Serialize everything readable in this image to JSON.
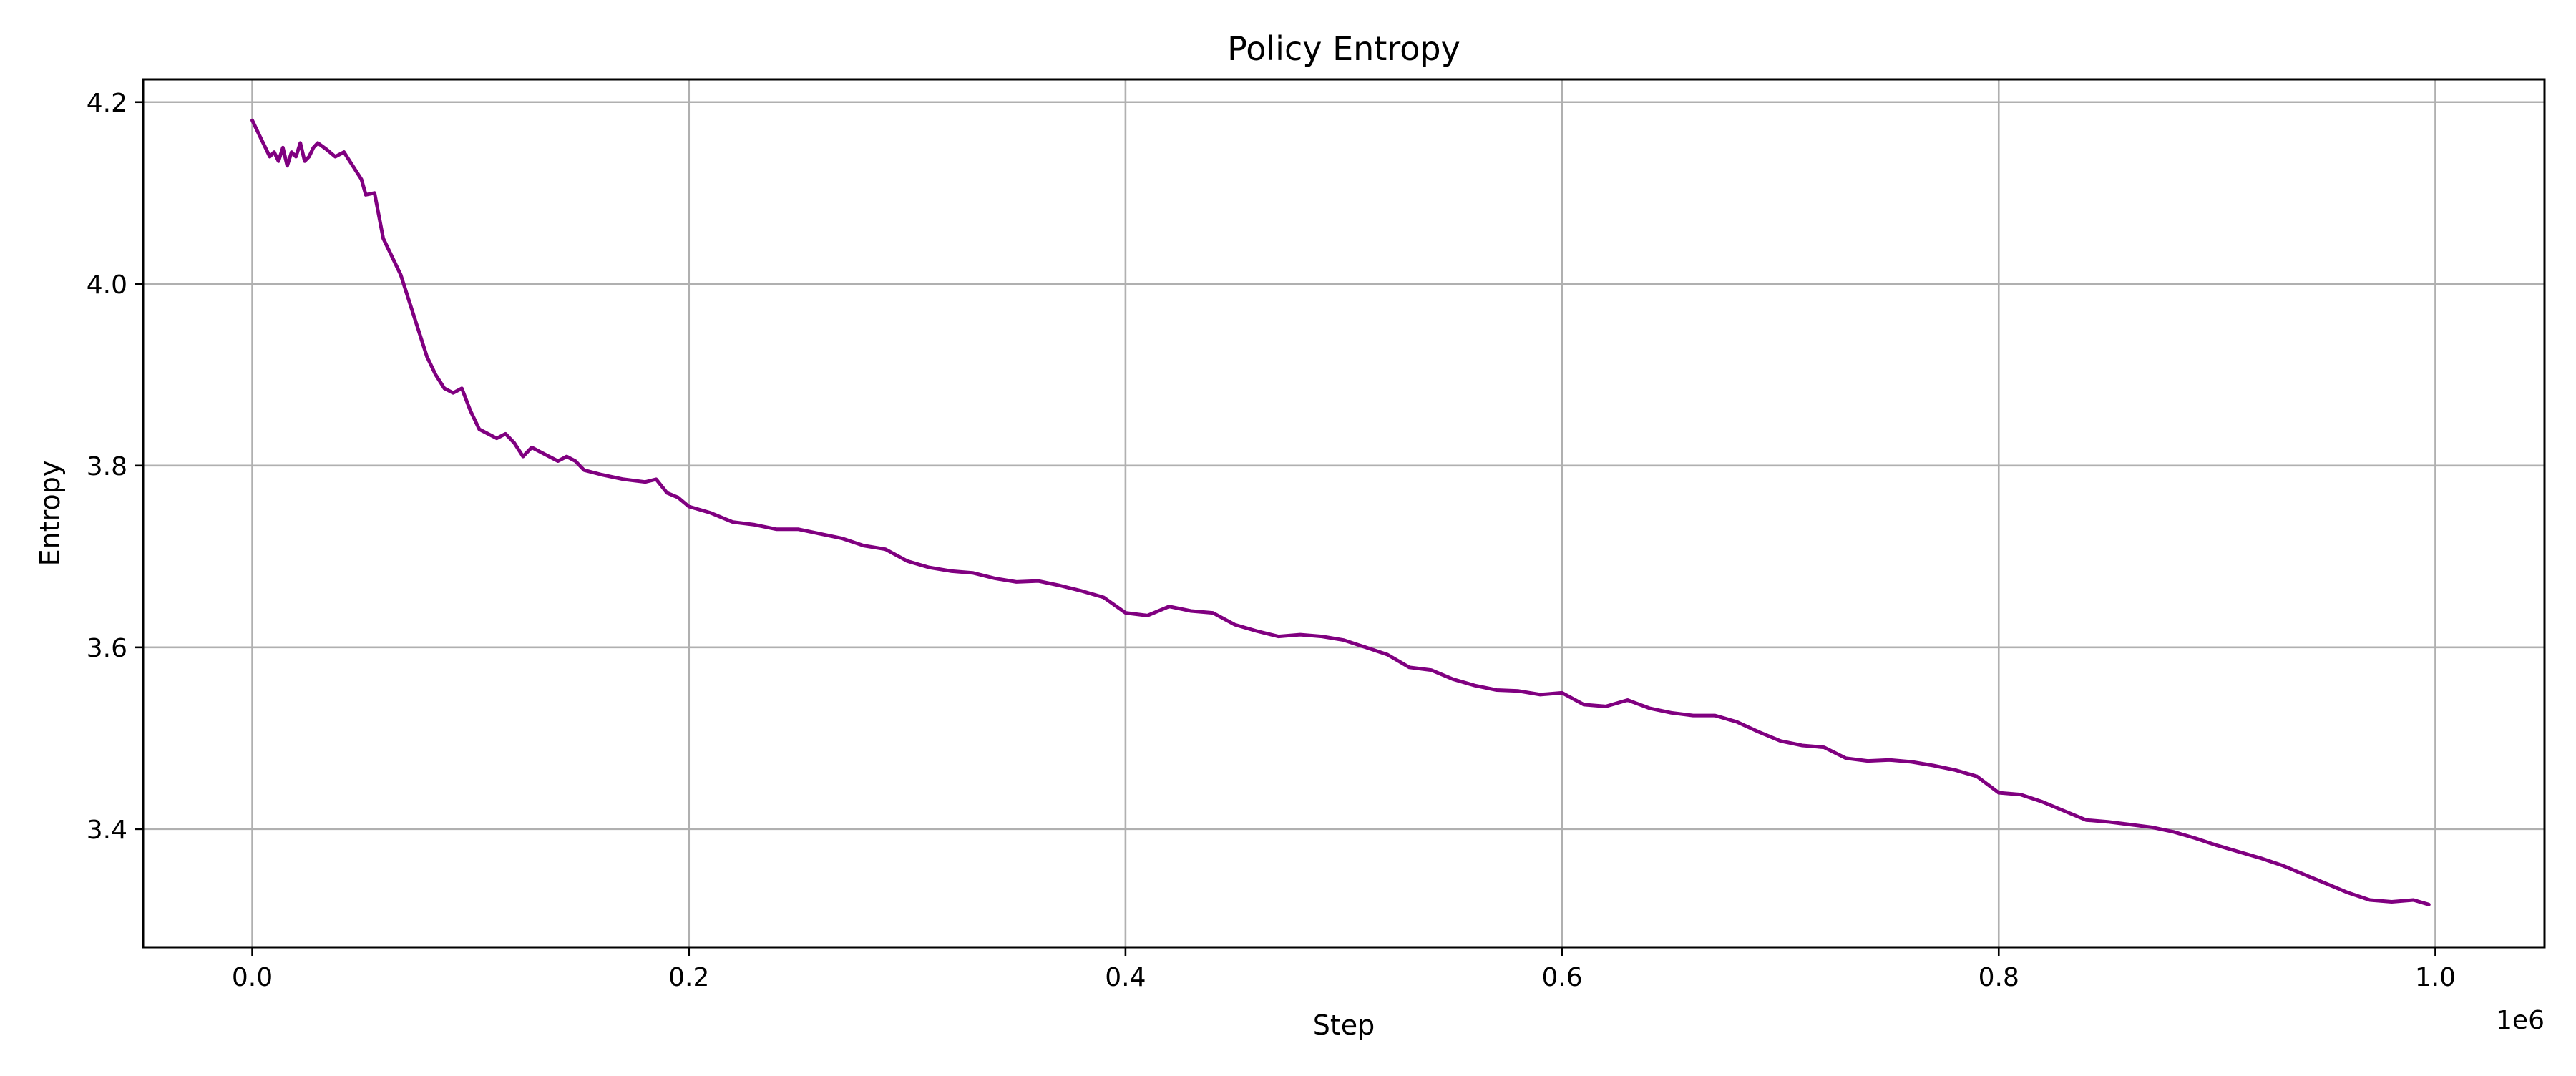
{
  "chart_data": {
    "type": "line",
    "title": "Policy Entropy",
    "xlabel": "Step",
    "ylabel": "Entropy",
    "x_offset_label": "1e6",
    "xlim": [
      -50000,
      1050000
    ],
    "ylim": [
      3.27,
      4.225
    ],
    "x_ticks": [
      0,
      200000,
      400000,
      600000,
      800000,
      1000000
    ],
    "x_tick_labels": [
      "0.0",
      "0.2",
      "0.4",
      "0.6",
      "0.8",
      "1.0"
    ],
    "y_ticks": [
      3.4,
      3.6,
      3.8,
      4.0,
      4.2
    ],
    "y_tick_labels": [
      "3.4",
      "3.6",
      "3.8",
      "4.0",
      "4.2"
    ],
    "grid": true,
    "line_color": "#800080",
    "series": [
      {
        "x": [
          0,
          2000,
          4000,
          6000,
          8000,
          10000,
          12000,
          14000,
          16000,
          18000,
          20000,
          22000,
          24000,
          26000,
          28000,
          30000,
          34000,
          38000,
          42000,
          46000,
          50000,
          52000,
          56000,
          60000,
          64000,
          68000,
          72000,
          76000,
          80000,
          84000,
          88000,
          92000,
          96000,
          100000,
          104000,
          108000,
          112000,
          116000,
          120000,
          124000,
          128000,
          132000,
          136000,
          140000,
          144000,
          148000,
          152000,
          160000,
          170000,
          180000,
          185000,
          190000,
          195000,
          200000,
          210000,
          220000,
          230000,
          240000,
          250000,
          260000,
          270000,
          280000,
          290000,
          300000,
          310000,
          320000,
          330000,
          340000,
          350000,
          360000,
          370000,
          380000,
          390000,
          400000,
          410000,
          420000,
          430000,
          440000,
          450000,
          460000,
          470000,
          480000,
          490000,
          500000,
          510000,
          520000,
          530000,
          540000,
          550000,
          560000,
          570000,
          580000,
          590000,
          600000,
          610000,
          620000,
          630000,
          640000,
          650000,
          660000,
          670000,
          680000,
          690000,
          700000,
          710000,
          720000,
          730000,
          740000,
          750000,
          760000,
          770000,
          780000,
          790000,
          800000,
          810000,
          820000,
          830000,
          840000,
          850000,
          860000,
          870000,
          880000,
          890000,
          900000,
          910000,
          920000,
          930000,
          940000,
          950000,
          960000,
          970000,
          980000,
          990000,
          997000
        ],
        "y": [
          4.18,
          4.17,
          4.16,
          4.15,
          4.14,
          4.145,
          4.135,
          4.15,
          4.13,
          4.145,
          4.14,
          4.155,
          4.135,
          4.14,
          4.15,
          4.155,
          4.148,
          4.14,
          4.145,
          4.13,
          4.115,
          4.098,
          4.1,
          4.05,
          4.03,
          4.01,
          3.98,
          3.95,
          3.92,
          3.9,
          3.885,
          3.88,
          3.885,
          3.86,
          3.84,
          3.835,
          3.83,
          3.835,
          3.825,
          3.81,
          3.82,
          3.815,
          3.81,
          3.805,
          3.81,
          3.805,
          3.795,
          3.79,
          3.785,
          3.782,
          3.785,
          3.77,
          3.765,
          3.755,
          3.748,
          3.738,
          3.735,
          3.73,
          3.73,
          3.725,
          3.72,
          3.712,
          3.708,
          3.695,
          3.688,
          3.684,
          3.682,
          3.676,
          3.672,
          3.673,
          3.668,
          3.662,
          3.655,
          3.638,
          3.635,
          3.645,
          3.64,
          3.638,
          3.625,
          3.618,
          3.612,
          3.614,
          3.612,
          3.608,
          3.6,
          3.592,
          3.578,
          3.575,
          3.565,
          3.558,
          3.553,
          3.552,
          3.548,
          3.55,
          3.537,
          3.535,
          3.542,
          3.533,
          3.528,
          3.525,
          3.525,
          3.518,
          3.507,
          3.497,
          3.492,
          3.49,
          3.478,
          3.475,
          3.476,
          3.474,
          3.47,
          3.465,
          3.458,
          3.44,
          3.438,
          3.43,
          3.42,
          3.41,
          3.408,
          3.405,
          3.402,
          3.397,
          3.39,
          3.382,
          3.375,
          3.368,
          3.36,
          3.35,
          3.34,
          3.33,
          3.322,
          3.32,
          3.322,
          3.317
        ]
      }
    ]
  }
}
